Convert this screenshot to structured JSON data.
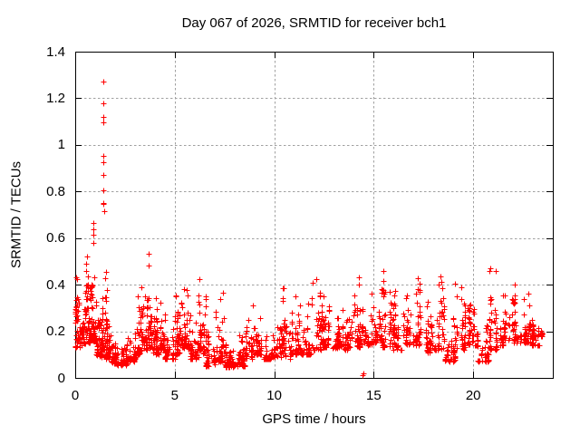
{
  "chart_data": {
    "type": "scatter",
    "title": "Day 067 of 2026, SRMTID for receiver bch1",
    "xlabel": "GPS time / hours",
    "ylabel": "SRMTID / TECUs",
    "xlim": [
      0,
      24
    ],
    "ylim": [
      0,
      1.4
    ],
    "xticks": {
      "values": [
        0,
        5,
        10,
        15,
        20
      ],
      "labels": [
        "0",
        "5",
        "10",
        "15",
        "20"
      ]
    },
    "yticks": {
      "values": [
        0,
        0.2,
        0.4,
        0.6,
        0.8,
        1.0,
        1.2,
        1.4
      ],
      "labels": [
        "0",
        "0.2",
        "0.4",
        "0.6",
        "0.8",
        "1",
        "1.2",
        "1.4"
      ]
    },
    "grid": true,
    "legend": "none",
    "marker": "plus",
    "marker_size_px": 7,
    "styles": {
      "marker_color": "#ff0000",
      "grid_color": "#a0a0a0",
      "axis_color": "#000000",
      "background": "#ffffff"
    },
    "point_bins_format": [
      "hour_start",
      "hour_end",
      "y_min",
      "y_max",
      "count"
    ],
    "point_bins": [
      [
        0.0,
        0.3,
        0.13,
        0.47,
        48
      ],
      [
        0.3,
        0.55,
        0.14,
        0.42,
        42
      ],
      [
        0.55,
        0.8,
        0.15,
        0.66,
        48
      ],
      [
        0.8,
        1.05,
        0.16,
        0.74,
        52
      ],
      [
        1.05,
        1.3,
        0.09,
        0.3,
        40
      ],
      [
        1.3,
        1.55,
        0.12,
        0.68,
        48
      ],
      [
        1.55,
        1.8,
        0.08,
        0.62,
        42
      ],
      [
        1.8,
        2.1,
        0.06,
        0.24,
        44
      ],
      [
        2.1,
        2.6,
        0.055,
        0.18,
        50
      ],
      [
        2.6,
        3.0,
        0.07,
        0.27,
        44
      ],
      [
        3.0,
        3.3,
        0.1,
        0.42,
        38
      ],
      [
        3.3,
        3.6,
        0.12,
        0.5,
        40
      ],
      [
        3.6,
        3.9,
        0.13,
        0.64,
        44
      ],
      [
        3.9,
        4.2,
        0.1,
        0.36,
        42
      ],
      [
        4.2,
        4.5,
        0.12,
        0.43,
        42
      ],
      [
        4.5,
        5.0,
        0.08,
        0.26,
        48
      ],
      [
        5.0,
        5.35,
        0.1,
        0.45,
        40
      ],
      [
        5.35,
        5.75,
        0.12,
        0.47,
        42
      ],
      [
        5.75,
        6.2,
        0.08,
        0.3,
        44
      ],
      [
        6.2,
        6.55,
        0.1,
        0.47,
        40
      ],
      [
        6.55,
        7.0,
        0.05,
        0.22,
        46
      ],
      [
        7.0,
        7.5,
        0.07,
        0.4,
        46
      ],
      [
        7.5,
        8.0,
        0.045,
        0.22,
        48
      ],
      [
        8.0,
        8.5,
        0.05,
        0.23,
        48
      ],
      [
        8.5,
        8.9,
        0.08,
        0.28,
        40
      ],
      [
        8.9,
        9.4,
        0.1,
        0.36,
        46
      ],
      [
        9.4,
        9.9,
        0.08,
        0.27,
        46
      ],
      [
        9.9,
        10.4,
        0.09,
        0.32,
        46
      ],
      [
        10.4,
        10.9,
        0.08,
        0.4,
        46
      ],
      [
        10.9,
        11.4,
        0.1,
        0.4,
        46
      ],
      [
        11.4,
        11.9,
        0.1,
        0.35,
        46
      ],
      [
        11.9,
        12.4,
        0.12,
        0.46,
        46
      ],
      [
        12.4,
        12.9,
        0.13,
        0.44,
        46
      ],
      [
        12.9,
        13.4,
        0.13,
        0.4,
        46
      ],
      [
        13.4,
        13.9,
        0.12,
        0.42,
        46
      ],
      [
        13.9,
        14.35,
        0.13,
        0.46,
        42
      ],
      [
        14.35,
        14.9,
        0.14,
        0.4,
        42
      ],
      [
        14.9,
        15.4,
        0.15,
        0.5,
        42
      ],
      [
        15.4,
        15.9,
        0.13,
        0.56,
        42
      ],
      [
        15.9,
        16.5,
        0.12,
        0.38,
        48
      ],
      [
        16.5,
        17.0,
        0.14,
        0.5,
        42
      ],
      [
        17.0,
        17.5,
        0.14,
        0.53,
        42
      ],
      [
        17.5,
        18.0,
        0.11,
        0.38,
        42
      ],
      [
        18.0,
        18.55,
        0.12,
        0.52,
        44
      ],
      [
        18.55,
        19.1,
        0.07,
        0.28,
        42
      ],
      [
        19.1,
        19.6,
        0.12,
        0.58,
        42
      ],
      [
        19.6,
        20.2,
        0.14,
        0.42,
        46
      ],
      [
        20.2,
        20.8,
        0.07,
        0.3,
        44
      ],
      [
        20.8,
        21.35,
        0.12,
        0.55,
        44
      ],
      [
        21.35,
        21.95,
        0.14,
        0.5,
        44
      ],
      [
        21.95,
        22.4,
        0.15,
        0.58,
        40
      ],
      [
        22.4,
        22.9,
        0.15,
        0.45,
        40
      ],
      [
        22.9,
        23.35,
        0.14,
        0.38,
        38
      ],
      [
        23.35,
        23.55,
        0.18,
        0.32,
        14
      ]
    ],
    "spike_points": [
      [
        1.4,
        1.272
      ],
      [
        1.41,
        1.177
      ],
      [
        1.405,
        1.119
      ],
      [
        1.415,
        1.095
      ],
      [
        1.41,
        0.952
      ],
      [
        1.405,
        0.924
      ],
      [
        1.415,
        0.87
      ],
      [
        1.42,
        0.806
      ],
      [
        1.425,
        0.752
      ],
      [
        1.43,
        0.745
      ],
      [
        1.44,
        0.715
      ]
    ],
    "low_outliers": [
      [
        14.42,
        0.012
      ],
      [
        14.47,
        0.018
      ]
    ]
  }
}
